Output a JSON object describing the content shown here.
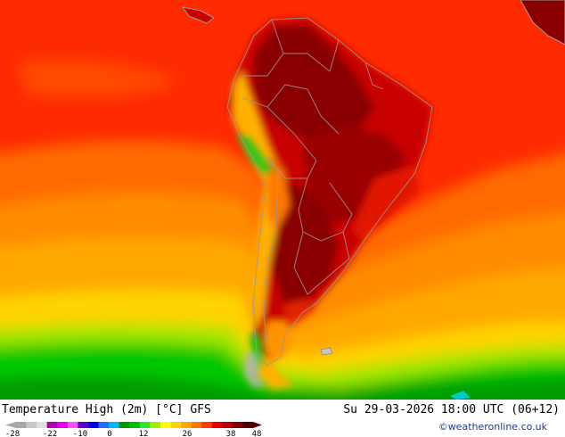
{
  "title": "Temperature High (2m) [°C] GFS",
  "valid_time": "Su 29-03-2026 18:00 UTC (06+12)",
  "credit": "©weatheronline.co.uk",
  "legend": {
    "tick_labels": [
      "-28",
      "-22",
      "-10",
      "0",
      "12",
      "26",
      "38",
      "48"
    ],
    "colors": [
      "#a8a8a8",
      "#c8c8c8",
      "#e0e0e0",
      "#b400b4",
      "#e600e6",
      "#ff50ff",
      "#5a00c8",
      "#0000e6",
      "#1e6eff",
      "#00b4ff",
      "#009600",
      "#00be00",
      "#2ee62e",
      "#a0f000",
      "#ffff00",
      "#ffd200",
      "#ffaa00",
      "#ff7800",
      "#ff3c00",
      "#e60000",
      "#b40000",
      "#820000",
      "#550000"
    ]
  },
  "palette": {
    "ocean_hot": "#ff2a00",
    "ocean_warm": "#ff6a00",
    "ocean_mild": "#ffa000",
    "ocean_cool": "#ffd000",
    "land_hot": "#8a0000",
    "land_warm": "#c00000",
    "andes_cool": "#ffb000",
    "andes_cold": "#1ec81e",
    "south_green": "#00c800",
    "borders": "#9a9a9a"
  }
}
